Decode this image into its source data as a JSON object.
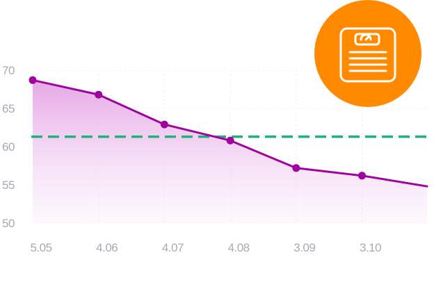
{
  "chart_data": {
    "type": "line",
    "categories": [
      "5.05",
      "4.06",
      "4.07",
      "4.08",
      "3.09",
      "3.10",
      ""
    ],
    "y_ticks": [
      "70",
      "65",
      "60",
      "55",
      "50"
    ],
    "ylim": [
      50,
      70
    ],
    "series": [
      {
        "values": [
          68.7,
          66.8,
          62.9,
          60.8,
          57.2,
          56.2,
          54.8
        ],
        "markers": [
          true,
          true,
          true,
          true,
          true,
          true,
          false
        ]
      }
    ],
    "reference_line": {
      "value": 61.3,
      "style": "dashed",
      "color": "#1db37a"
    },
    "grid": true,
    "colors": {
      "line": "#a0049e",
      "marker": "#a0049e",
      "fill_top": "#e7a8e6",
      "badge": "#ff8a00",
      "badge_icon": "#ffffff"
    },
    "badge_icon": "bathroom-scale-icon"
  }
}
